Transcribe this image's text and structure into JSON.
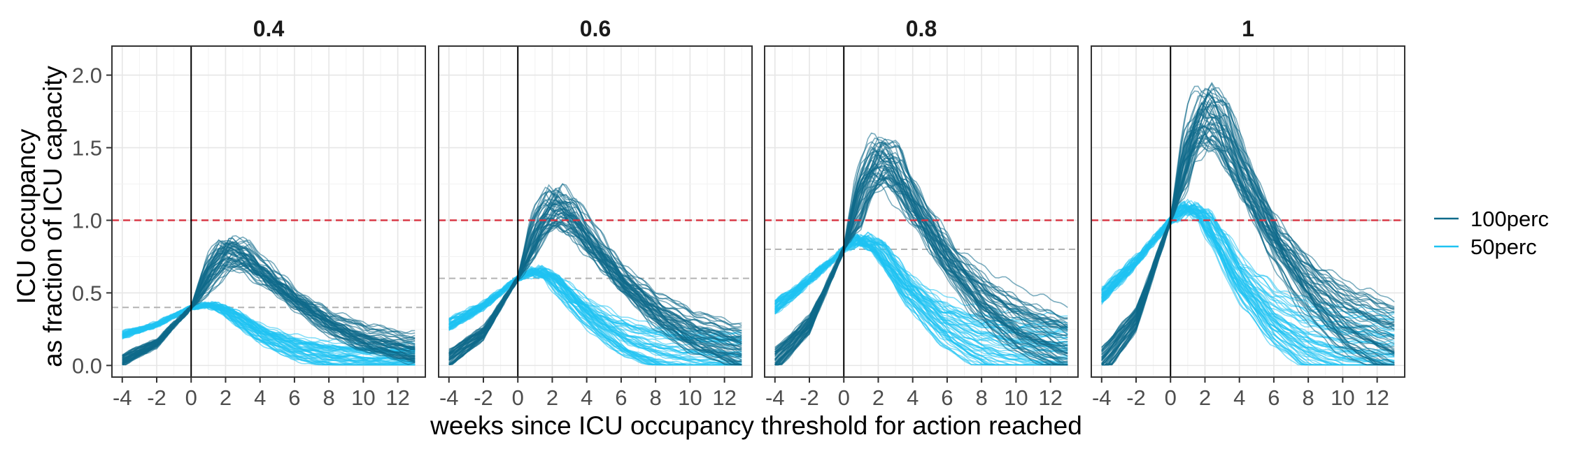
{
  "chart_data": {
    "type": "line",
    "xlabel": "weeks since ICU occupancy threshold for action reached",
    "ylabel_lines": [
      "ICU occupancy",
      "as fraction of ICU capacity"
    ],
    "xlim": [
      -4.6,
      13.6
    ],
    "ylim": [
      -0.08,
      2.2
    ],
    "x_ticks": [
      -4,
      -2,
      0,
      2,
      4,
      6,
      8,
      10,
      12
    ],
    "x_tick_labels": [
      "-4",
      "-2",
      "0",
      "2",
      "4",
      "6",
      "8",
      "10",
      "12"
    ],
    "y_ticks": [
      0.0,
      0.5,
      1.0,
      1.5,
      2.0
    ],
    "y_tick_labels": [
      "0.0",
      "0.5",
      "1.0",
      "1.5",
      "2.0"
    ],
    "grid": true,
    "reference_lines": {
      "vertical_x": 0,
      "capacity_y": 1.0,
      "capacity_color": "#d7303f",
      "threshold_color": "#b3b3b3"
    },
    "legend": {
      "position": "right",
      "entries": [
        {
          "label": "100perc",
          "color": "#0e6a8a"
        },
        {
          "label": "50perc",
          "color": "#1fc2f2"
        }
      ]
    },
    "facets": [
      {
        "title": "0.4",
        "threshold": 0.4,
        "series": [
          {
            "legend": "100perc",
            "x": [
              -4,
              -2,
              0,
              1,
              2,
              3,
              4,
              6,
              8,
              10,
              13
            ],
            "y": [
              0.09,
              0.19,
              0.4,
              0.62,
              0.78,
              0.76,
              0.66,
              0.45,
              0.28,
              0.17,
              0.09
            ]
          },
          {
            "legend": "50perc",
            "x": [
              -4,
              -2,
              0,
              1,
              2,
              3,
              4,
              6,
              8,
              10,
              13
            ],
            "y": [
              0.24,
              0.3,
              0.4,
              0.42,
              0.38,
              0.3,
              0.22,
              0.12,
              0.07,
              0.05,
              0.04
            ]
          }
        ]
      },
      {
        "title": "0.6",
        "threshold": 0.6,
        "series": [
          {
            "legend": "100perc",
            "x": [
              -4,
              -2,
              0,
              1,
              2,
              3,
              4,
              6,
              8,
              10,
              13
            ],
            "y": [
              0.13,
              0.28,
              0.6,
              0.92,
              1.1,
              1.04,
              0.88,
              0.58,
              0.36,
              0.21,
              0.1
            ]
          },
          {
            "legend": "50perc",
            "x": [
              -4,
              -2,
              0,
              1,
              2,
              3,
              4,
              6,
              8,
              10,
              13
            ],
            "y": [
              0.33,
              0.44,
              0.6,
              0.66,
              0.6,
              0.48,
              0.36,
              0.19,
              0.11,
              0.07,
              0.05
            ]
          }
        ]
      },
      {
        "title": "0.8",
        "threshold": 0.8,
        "series": [
          {
            "legend": "100perc",
            "x": [
              -4,
              -2,
              0,
              1,
              2,
              3,
              4,
              6,
              8,
              10,
              13
            ],
            "y": [
              0.15,
              0.36,
              0.8,
              1.2,
              1.42,
              1.34,
              1.12,
              0.72,
              0.44,
              0.26,
              0.12
            ]
          },
          {
            "legend": "50perc",
            "x": [
              -4,
              -2,
              0,
              1,
              2,
              3,
              4,
              6,
              8,
              10,
              13
            ],
            "y": [
              0.46,
              0.62,
              0.8,
              0.88,
              0.82,
              0.66,
              0.5,
              0.27,
              0.15,
              0.09,
              0.06
            ]
          }
        ]
      },
      {
        "title": "1",
        "threshold": 1.0,
        "series": [
          {
            "legend": "100perc",
            "x": [
              -4,
              -2,
              0,
              1,
              2,
              3,
              4,
              6,
              8,
              10,
              13
            ],
            "y": [
              0.16,
              0.42,
              1.0,
              1.5,
              1.74,
              1.64,
              1.36,
              0.86,
              0.52,
              0.3,
              0.14
            ]
          },
          {
            "legend": "50perc",
            "x": [
              -4,
              -2,
              0,
              1,
              2,
              3,
              4,
              6,
              8,
              10,
              13
            ],
            "y": [
              0.56,
              0.76,
              1.0,
              1.1,
              1.02,
              0.82,
              0.6,
              0.32,
              0.17,
              0.1,
              0.07
            ]
          }
        ]
      }
    ]
  }
}
